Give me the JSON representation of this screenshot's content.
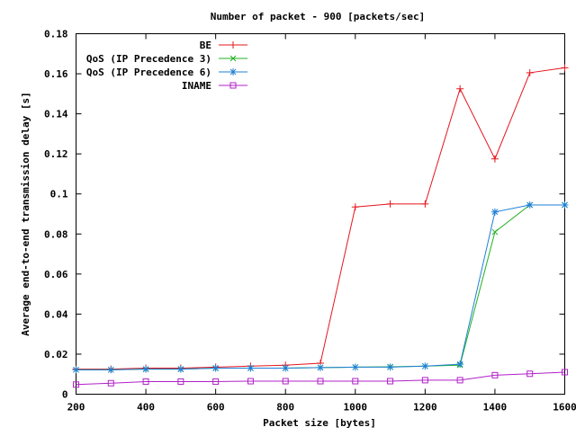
{
  "chart_data": {
    "type": "line",
    "title": "Number of packet - 900 [packets/sec]",
    "xlabel": "Packet size [bytes]",
    "ylabel": "Average end-to-end transmission delay [s]",
    "xlim": [
      200,
      1600
    ],
    "ylim": [
      0,
      0.18
    ],
    "xticks": [
      200,
      400,
      600,
      800,
      1000,
      1200,
      1400,
      1600
    ],
    "yticks": [
      0,
      0.02,
      0.04,
      0.06,
      0.08,
      0.1,
      0.12,
      0.14,
      0.16,
      0.18
    ],
    "xtick_labels": [
      "200",
      "400",
      "600",
      "800",
      "1000",
      "1200",
      "1400",
      "1600"
    ],
    "ytick_labels": [
      "0",
      "0.02",
      "0.04",
      "0.06",
      "0.08",
      "0.1",
      "0.12",
      "0.14",
      "0.16",
      "0.18"
    ],
    "grid": false,
    "legend_position": "top-left",
    "x": [
      200,
      300,
      400,
      500,
      600,
      700,
      800,
      900,
      1000,
      1100,
      1200,
      1300,
      1400,
      1500,
      1600
    ],
    "series": [
      {
        "name": "BE",
        "color": "#e4161e",
        "marker": "plus",
        "values": [
          0.0125,
          0.0125,
          0.013,
          0.013,
          0.0135,
          0.014,
          0.0145,
          0.0155,
          0.0935,
          0.095,
          0.095,
          0.1525,
          0.1175,
          0.1605,
          0.163
        ]
      },
      {
        "name": "QoS (IP Precedence 3)",
        "color": "#20b020",
        "marker": "x",
        "values": [
          0.0122,
          0.0122,
          0.0125,
          0.0125,
          0.013,
          0.013,
          0.013,
          0.0133,
          0.0135,
          0.0137,
          0.014,
          0.0145,
          0.081,
          0.0945,
          0.0945
        ]
      },
      {
        "name": "QoS (IP Precedence 6)",
        "color": "#1f7fd8",
        "marker": "star",
        "values": [
          0.0122,
          0.0122,
          0.0125,
          0.0125,
          0.013,
          0.013,
          0.013,
          0.0133,
          0.0135,
          0.0135,
          0.014,
          0.015,
          0.091,
          0.0945,
          0.0945
        ]
      },
      {
        "name": "INAME",
        "color": "#b020c8",
        "marker": "square",
        "values": [
          0.0048,
          0.0055,
          0.0063,
          0.0063,
          0.0063,
          0.0065,
          0.0065,
          0.0065,
          0.0065,
          0.0065,
          0.007,
          0.007,
          0.0095,
          0.0102,
          0.011
        ]
      }
    ]
  }
}
